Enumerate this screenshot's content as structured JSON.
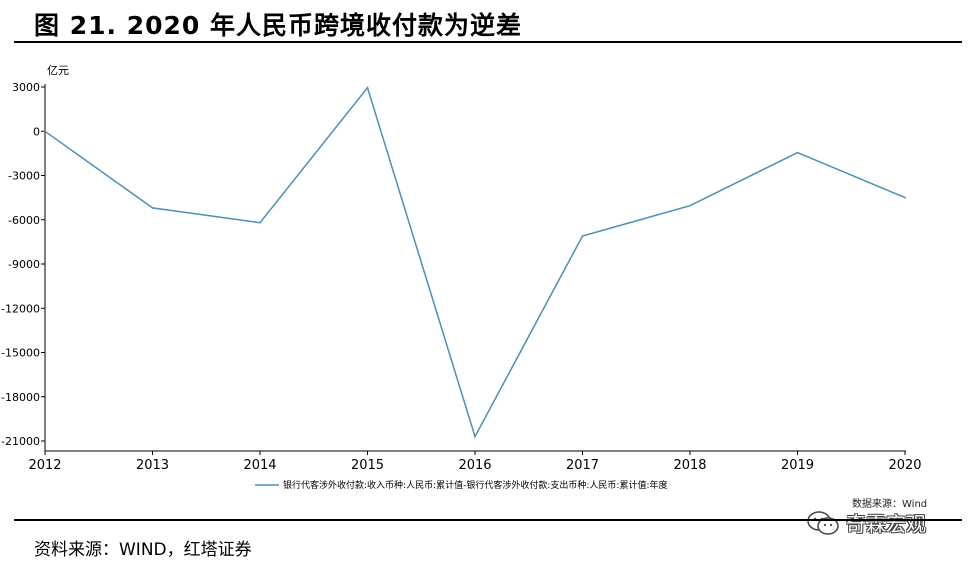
{
  "figure": {
    "title": "图 21. 2020 年人民币跨境收付款为逆差",
    "source_note": "资料来源：WIND，红塔证券",
    "chart_source": "数据来源：Wind",
    "watermark": "奇霖宏观",
    "line_color": "#4a90b8"
  },
  "chart_data": {
    "type": "line",
    "title": "",
    "ylabel": "亿元",
    "xlabel": "",
    "x": [
      "2012",
      "2013",
      "2014",
      "2015",
      "2016",
      "2017",
      "2018",
      "2019",
      "2020"
    ],
    "series": [
      {
        "name": "银行代客涉外收付款:收入币种:人民币:累计值-银行代客涉外收付款:支出币种:人民币:累计值:年度",
        "values": [
          0,
          -5200,
          -6200,
          2950,
          -20700,
          -7100,
          -5050,
          -1450,
          -4500
        ]
      }
    ],
    "ylim": [
      -21000,
      3000
    ],
    "yticks": [
      "3000",
      "0",
      "-3000",
      "-6000",
      "-9000",
      "-12000",
      "-15000",
      "-18000",
      "-21000"
    ],
    "grid": false,
    "legend_position": "bottom"
  }
}
